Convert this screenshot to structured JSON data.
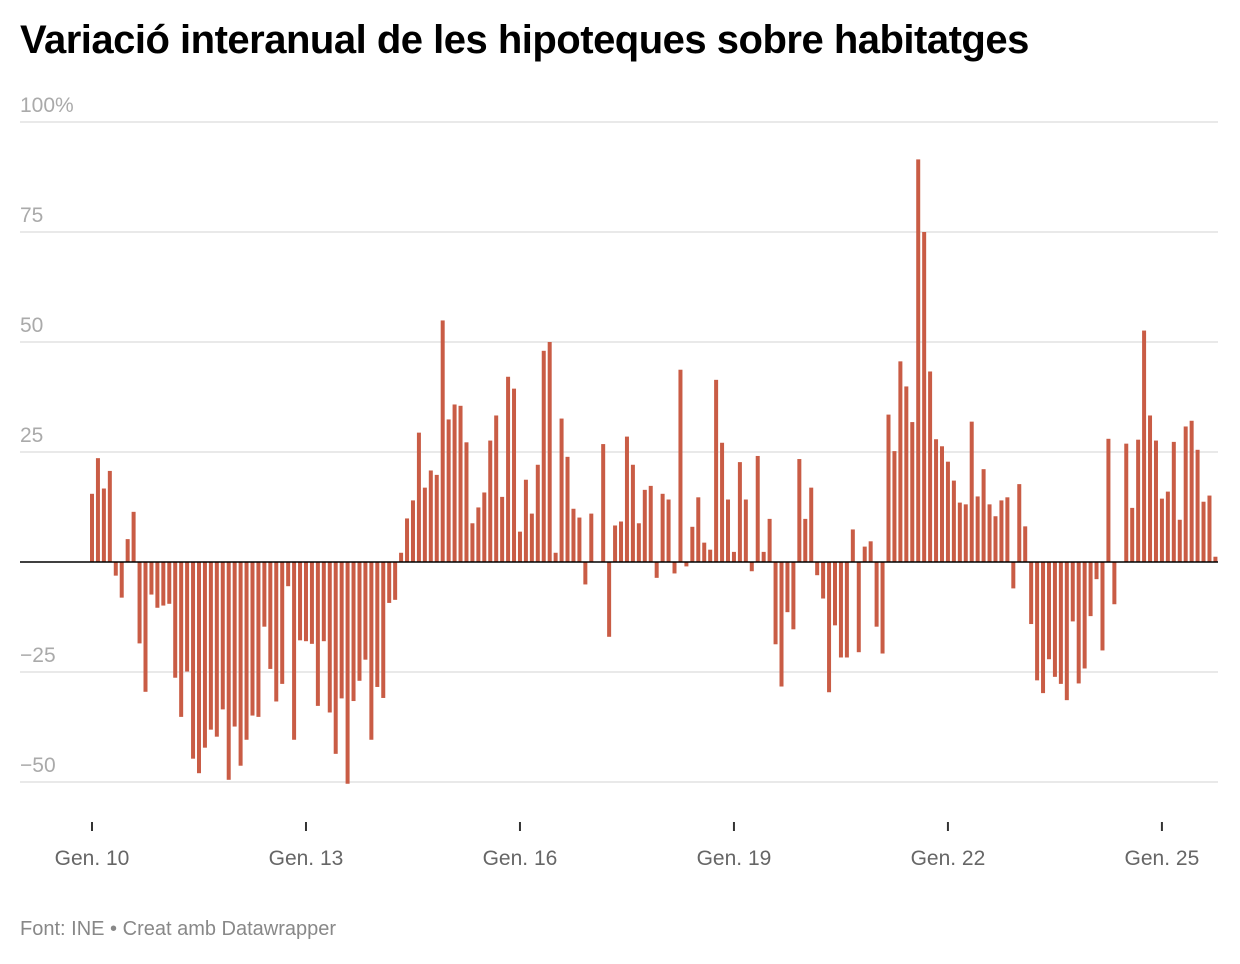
{
  "title": "Variació interanual de les hipoteques sobre habitatges",
  "footer": {
    "source": "Font: INE",
    "separator": "•",
    "credit": "Creat amb Datawrapper"
  },
  "colors": {
    "bar": "#c95c45",
    "zero_line": "#000000",
    "grid": "#e2e2e2"
  },
  "chart_data": {
    "type": "bar",
    "title": "Variació interanual de les hipoteques sobre habitatges",
    "xlabel": "",
    "ylabel": "",
    "ylim": [
      -50,
      100
    ],
    "yticks": [
      100,
      75,
      50,
      25,
      -25,
      -50
    ],
    "ytick_labels": [
      "100%",
      "75",
      "50",
      "25",
      "−25",
      "−50"
    ],
    "xticks": [
      "2010-01",
      "2013-01",
      "2016-01",
      "2019-01",
      "2022-01",
      "2025-01"
    ],
    "xtick_labels": [
      "Gen. 10",
      "Gen. 13",
      "Gen. 16",
      "Gen. 19",
      "Gen. 22",
      "Gen. 25"
    ],
    "grid": true,
    "x": [
      "2010-01",
      "2010-02",
      "2010-03",
      "2010-04",
      "2010-05",
      "2010-06",
      "2010-07",
      "2010-08",
      "2010-09",
      "2010-10",
      "2010-11",
      "2010-12",
      "2011-01",
      "2011-02",
      "2011-03",
      "2011-04",
      "2011-05",
      "2011-06",
      "2011-07",
      "2011-08",
      "2011-09",
      "2011-10",
      "2011-11",
      "2011-12",
      "2012-01",
      "2012-02",
      "2012-03",
      "2012-04",
      "2012-05",
      "2012-06",
      "2012-07",
      "2012-08",
      "2012-09",
      "2012-10",
      "2012-11",
      "2012-12",
      "2013-01",
      "2013-02",
      "2013-03",
      "2013-04",
      "2013-05",
      "2013-06",
      "2013-07",
      "2013-08",
      "2013-09",
      "2013-10",
      "2013-11",
      "2013-12",
      "2014-01",
      "2014-02",
      "2014-03",
      "2014-04",
      "2014-05",
      "2014-06",
      "2014-07",
      "2014-08",
      "2014-09",
      "2014-10",
      "2014-11",
      "2014-12",
      "2015-01",
      "2015-02",
      "2015-03",
      "2015-04",
      "2015-05",
      "2015-06",
      "2015-07",
      "2015-08",
      "2015-09",
      "2015-10",
      "2015-11",
      "2015-12",
      "2016-01",
      "2016-02",
      "2016-03",
      "2016-04",
      "2016-05",
      "2016-06",
      "2016-07",
      "2016-08",
      "2016-09",
      "2016-10",
      "2016-11",
      "2016-12",
      "2017-01",
      "2017-02",
      "2017-03",
      "2017-04",
      "2017-05",
      "2017-06",
      "2017-07",
      "2017-08",
      "2017-09",
      "2017-10",
      "2017-11",
      "2017-12",
      "2018-01",
      "2018-02",
      "2018-03",
      "2018-04",
      "2018-05",
      "2018-06",
      "2018-07",
      "2018-08",
      "2018-09",
      "2018-10",
      "2018-11",
      "2018-12",
      "2019-01",
      "2019-02",
      "2019-03",
      "2019-04",
      "2019-05",
      "2019-06",
      "2019-07",
      "2019-08",
      "2019-09",
      "2019-10",
      "2019-11",
      "2019-12",
      "2020-01",
      "2020-02",
      "2020-03",
      "2020-04",
      "2020-05",
      "2020-06",
      "2020-07",
      "2020-08",
      "2020-09",
      "2020-10",
      "2020-11",
      "2020-12",
      "2021-01",
      "2021-02",
      "2021-03",
      "2021-04",
      "2021-05",
      "2021-06",
      "2021-07",
      "2021-08",
      "2021-09",
      "2021-10",
      "2021-11",
      "2021-12",
      "2022-01",
      "2022-02",
      "2022-03",
      "2022-04",
      "2022-05",
      "2022-06",
      "2022-07",
      "2022-08",
      "2022-09",
      "2022-10",
      "2022-11",
      "2022-12",
      "2023-01",
      "2023-02",
      "2023-03",
      "2023-04",
      "2023-05",
      "2023-06",
      "2023-07",
      "2023-08",
      "2023-09",
      "2023-10",
      "2023-11",
      "2023-12",
      "2024-01",
      "2024-02",
      "2024-03",
      "2024-04",
      "2024-05",
      "2024-06",
      "2024-07",
      "2024-08",
      "2024-09",
      "2024-10",
      "2024-11",
      "2024-12",
      "2025-01",
      "2025-02",
      "2025-03",
      "2025-04",
      "2025-05",
      "2025-06",
      "2025-07",
      "2025-08",
      "2025-09",
      "2025-10"
    ],
    "values": [
      15.5,
      23.6,
      16.7,
      20.7,
      -3.1,
      -8.1,
      5.2,
      11.4,
      -18.5,
      -29.5,
      -7.4,
      -10.4,
      -9.9,
      -9.5,
      -26.3,
      -35.2,
      -24.9,
      -44.7,
      -48,
      -42.2,
      -38.1,
      -39.7,
      -33.5,
      -49.5,
      -37.4,
      -46.3,
      -40.4,
      -34.9,
      -35.2,
      -14.7,
      -24.3,
      -31.7,
      -27.7,
      -5.5,
      -40.4,
      -17.8,
      -18,
      -18.6,
      -32.7,
      -18,
      -34.2,
      -43.6,
      -31,
      -50.4,
      -31.6,
      -27,
      -22.2,
      -40.4,
      -28.4,
      -30.9,
      -9.3,
      -8.6,
      2.1,
      9.9,
      14,
      29.4,
      16.9,
      20.8,
      19.8,
      54.9,
      32.4,
      35.8,
      35.5,
      27.2,
      8.8,
      12.4,
      15.8,
      27.6,
      33.3,
      14.8,
      42.1,
      39.4,
      6.9,
      18.7,
      11,
      22.1,
      48,
      50,
      2.1,
      32.6,
      23.9,
      12.1,
      10.1,
      -5.1,
      11,
      0,
      26.8,
      -17,
      8.3,
      9.2,
      28.5,
      22.1,
      8.8,
      16.4,
      17.3,
      -3.6,
      15.5,
      14.2,
      -2.6,
      43.7,
      -1,
      8,
      14.7,
      4.4,
      2.8,
      41.4,
      27.1,
      14.2,
      2.3,
      22.7,
      14.2,
      -2.1,
      24.1,
      2.3,
      9.8,
      -18.7,
      -28.3,
      -11.4,
      -15.3,
      23.4,
      9.8,
      16.9,
      -3,
      -8.3,
      -29.6,
      -14.4,
      -21.7,
      -21.7,
      7.4,
      -20.5,
      3.5,
      4.7,
      -14.7,
      -20.8,
      33.5,
      25.2,
      45.6,
      39.9,
      31.8,
      91.5,
      75,
      43.3,
      27.9,
      26.3,
      22.8,
      18.5,
      13.5,
      13.1,
      31.9,
      14.9,
      21.1,
      13.1,
      10.4,
      14,
      14.7,
      -6,
      17.7,
      8.1,
      -14.1,
      -26.9,
      -29.8,
      -22.1,
      -26.1,
      -27.7,
      -31.4,
      -13.5,
      -27.6,
      -24.2,
      -12.3,
      -3.9,
      -20.1,
      28,
      -9.6,
      0,
      26.9,
      12.3,
      27.8,
      52.6,
      33.3,
      27.6,
      14.4,
      16,
      27.3,
      9.6,
      30.8,
      32.1,
      25.5,
      13.7,
      15.1,
      1.2
    ]
  }
}
